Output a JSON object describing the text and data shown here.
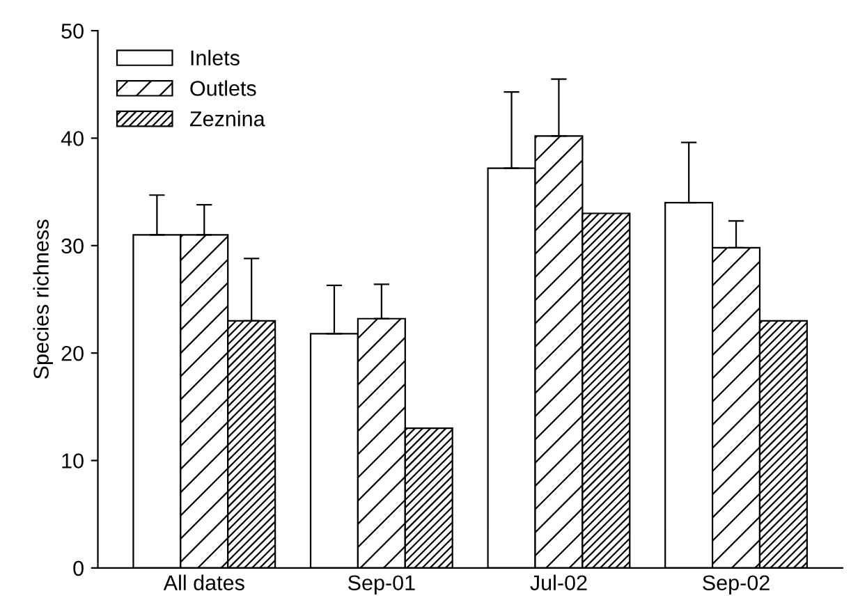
{
  "chart_data": {
    "type": "bar",
    "ylabel": "Species richness",
    "categories": [
      "All dates",
      "Sep-01",
      "Jul-02",
      "Sep-02"
    ],
    "series": [
      {
        "name": "Inlets",
        "color": "#ffffff",
        "values": [
          31.0,
          21.8,
          37.2,
          34.0
        ],
        "errors": [
          [
            31.0,
            34.7
          ],
          [
            21.8,
            26.3
          ],
          [
            37.2,
            44.3
          ],
          [
            34.0,
            39.6
          ]
        ]
      },
      {
        "name": "Outlets",
        "color": "#000000",
        "values": [
          31.0,
          23.2,
          40.2,
          29.8
        ],
        "errors": [
          [
            31.0,
            33.8
          ],
          [
            23.2,
            26.4
          ],
          [
            40.2,
            45.5
          ],
          [
            29.8,
            32.3
          ]
        ]
      },
      {
        "name": "Zeznina",
        "color": "#000000",
        "values": [
          23.0,
          13.0,
          33.0,
          23.0
        ],
        "errors": [
          [
            23.0,
            28.8
          ],
          null,
          null,
          null
        ]
      }
    ],
    "ylim": [
      0,
      50
    ],
    "yticks": [
      0,
      10,
      20,
      30,
      40,
      50
    ],
    "legend": "top left",
    "grid": false
  }
}
